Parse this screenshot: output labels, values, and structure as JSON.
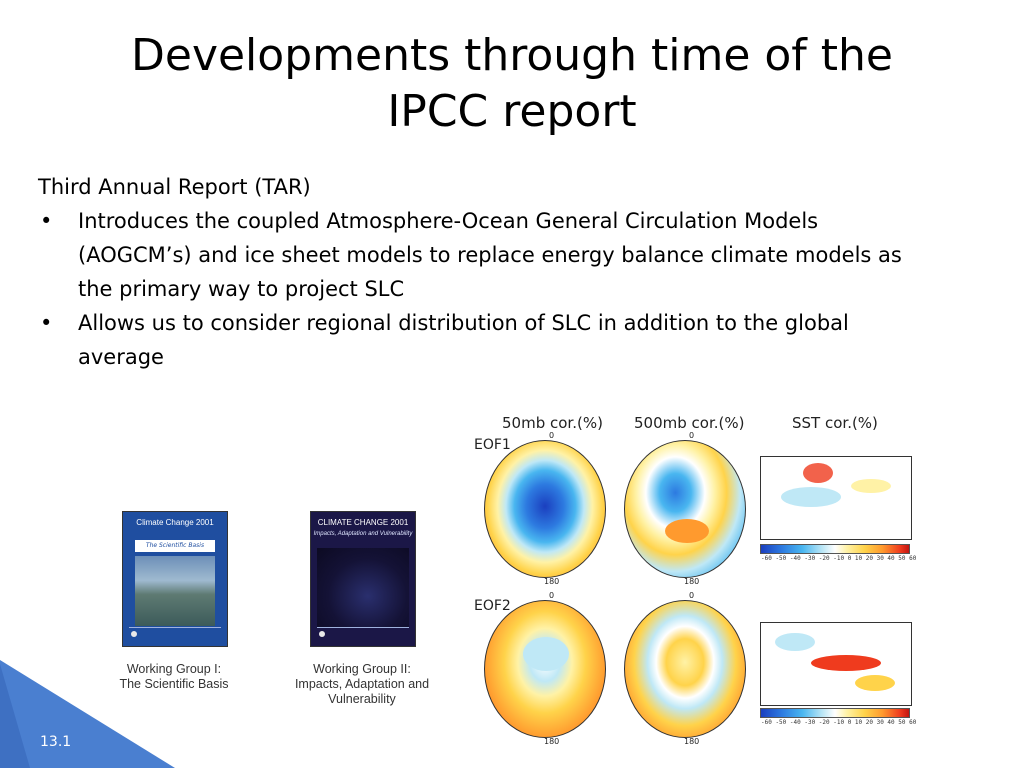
{
  "title": {
    "line1": "Developments through time of the",
    "line2": "IPCC report"
  },
  "subhead": "Third Annual Report (TAR)",
  "bullets": [
    {
      "marker": "•",
      "line1": "Introduces the coupled Atmosphere-Ocean General Circulation Models",
      "line2": "(AOGCM’s) and ice sheet models to replace energy balance climate models as",
      "line3": "the primary way to project SLC"
    },
    {
      "marker": "•",
      "line1": "Allows us to consider regional distribution of SLC in addition to the global",
      "line2": "average"
    }
  ],
  "covers": [
    {
      "title": "Climate Change 2001",
      "subtitle": "The Scientific Basis",
      "caption_line1": "Working Group I:",
      "caption_line2": "The Scientific Basis"
    },
    {
      "title": "CLIMATE CHANGE 2001",
      "subtitle": "Impacts, Adaptation and Vulnerability",
      "caption_line1": "Working Group II:",
      "caption_line2": "Impacts, Adaptation and",
      "caption_line3": "Vulnerability"
    }
  ],
  "figure": {
    "col_titles": [
      "50mb  cor.(%)",
      "500mb  cor.(%)",
      "SST  cor.(%)"
    ],
    "rows": [
      "EOF1",
      "EOF2"
    ],
    "tick_top": "0",
    "tick_bottom": "180",
    "colorbar_ticks": "-60 -50 -40 -30 -20 -10  0  10  20  30  40  50  60",
    "colors": {
      "blue_dark": "#1b3fbf",
      "blue": "#49b6f0",
      "yellow": "#ffd34a",
      "orange": "#ff9a2e",
      "red": "#ef3b1e"
    }
  },
  "slide_number": "13.1",
  "accent_color": "#4a7fd0"
}
